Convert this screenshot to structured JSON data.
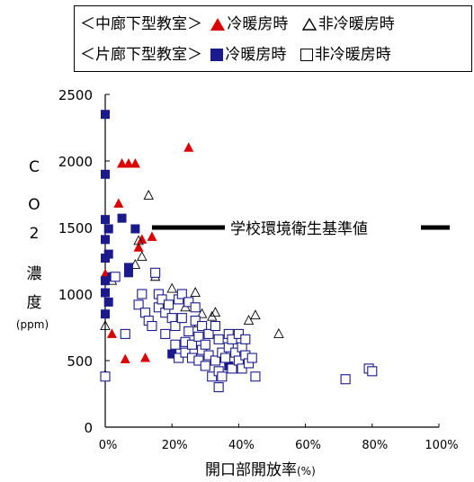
{
  "chart_data": {
    "type": "scatter",
    "xlabel": "開口部開放率",
    "xlabel_unit": "(%)",
    "ylabel_chars": [
      "C",
      "O",
      "2",
      "濃",
      "度"
    ],
    "ylabel_unit": "(ppm)",
    "xlim": [
      0,
      100
    ],
    "ylim": [
      0,
      2500
    ],
    "x_ticks": [
      0,
      20,
      40,
      60,
      80,
      100
    ],
    "x_tick_labels": [
      "0%",
      "20%",
      "40%",
      "60%",
      "80%",
      "100%"
    ],
    "y_ticks": [
      0,
      500,
      1000,
      1500,
      2000,
      2500
    ],
    "y_tick_labels": [
      "0",
      "500",
      "1000",
      "1500",
      "2000",
      "2500"
    ],
    "reference_line": {
      "value": 1500,
      "x_start": 14,
      "x_end": 100,
      "label": "学校環境衛生基準値"
    },
    "legend": {
      "row1_group": "＜中廊下型教室＞",
      "row2_group": "＜片廊下型教室＞",
      "heated": "冷暖房時",
      "unheated": "非冷暖房時"
    },
    "series": [
      {
        "name": "中廊下型教室 冷暖房時",
        "marker": "triangle-filled",
        "color": "#dd0000",
        "points": [
          [
            0,
            1150
          ],
          [
            2,
            700
          ],
          [
            4,
            1680
          ],
          [
            5,
            1980
          ],
          [
            7,
            1980
          ],
          [
            9,
            1980
          ],
          [
            10,
            1350
          ],
          [
            11,
            1410
          ],
          [
            14,
            1430
          ],
          [
            25,
            2100
          ],
          [
            6,
            510
          ],
          [
            12,
            520
          ]
        ]
      },
      {
        "name": "中廊下型教室 非冷暖房時",
        "marker": "triangle-open",
        "color": "#000000",
        "points": [
          [
            0,
            760
          ],
          [
            9,
            1220
          ],
          [
            10,
            1400
          ],
          [
            11,
            1280
          ],
          [
            13,
            1740
          ],
          [
            15,
            1130
          ],
          [
            20,
            1040
          ],
          [
            24,
            900
          ],
          [
            27,
            1010
          ],
          [
            28,
            780
          ],
          [
            29,
            850
          ],
          [
            32,
            830
          ],
          [
            33,
            860
          ],
          [
            43,
            800
          ],
          [
            45,
            840
          ],
          [
            52,
            700
          ],
          [
            0,
            390
          ],
          [
            2,
            1100
          ]
        ]
      },
      {
        "name": "片廊下型教室 冷暖房時",
        "marker": "square-filled",
        "color": "#1a1a8c",
        "points": [
          [
            0,
            2350
          ],
          [
            0,
            1900
          ],
          [
            0,
            1560
          ],
          [
            0,
            1410
          ],
          [
            0,
            1270
          ],
          [
            0,
            1100
          ],
          [
            0,
            1010
          ],
          [
            0,
            850
          ],
          [
            1,
            1490
          ],
          [
            1,
            1300
          ],
          [
            1,
            940
          ],
          [
            2,
            1130
          ],
          [
            5,
            1570
          ],
          [
            7,
            1200
          ],
          [
            7,
            1160
          ],
          [
            9,
            1490
          ],
          [
            20,
            550
          ],
          [
            37,
            460
          ]
        ]
      },
      {
        "name": "片廊下型教室 非冷暖房時",
        "marker": "square-open",
        "color": "#1a1a8c",
        "points": [
          [
            0,
            380
          ],
          [
            3,
            1130
          ],
          [
            6,
            700
          ],
          [
            10,
            920
          ],
          [
            11,
            1000
          ],
          [
            12,
            860
          ],
          [
            13,
            800
          ],
          [
            14,
            760
          ],
          [
            15,
            1160
          ],
          [
            16,
            900
          ],
          [
            16,
            1000
          ],
          [
            17,
            960
          ],
          [
            18,
            860
          ],
          [
            18,
            700
          ],
          [
            19,
            920
          ],
          [
            20,
            820
          ],
          [
            21,
            760
          ],
          [
            21,
            620
          ],
          [
            22,
            960
          ],
          [
            22,
            520
          ],
          [
            23,
            1000
          ],
          [
            23,
            820
          ],
          [
            24,
            640
          ],
          [
            24,
            560
          ],
          [
            25,
            940
          ],
          [
            25,
            720
          ],
          [
            26,
            620
          ],
          [
            26,
            520
          ],
          [
            27,
            900
          ],
          [
            27,
            800
          ],
          [
            28,
            680
          ],
          [
            28,
            500
          ],
          [
            29,
            760
          ],
          [
            29,
            580
          ],
          [
            30,
            620
          ],
          [
            30,
            460
          ],
          [
            31,
            700
          ],
          [
            31,
            540
          ],
          [
            32,
            380
          ],
          [
            33,
            760
          ],
          [
            33,
            500
          ],
          [
            34,
            660
          ],
          [
            34,
            420
          ],
          [
            35,
            560
          ],
          [
            35,
            380
          ],
          [
            36,
            520
          ],
          [
            37,
            700
          ],
          [
            37,
            600
          ],
          [
            38,
            660
          ],
          [
            38,
            440
          ],
          [
            39,
            560
          ],
          [
            40,
            700
          ],
          [
            40,
            500
          ],
          [
            41,
            600
          ],
          [
            41,
            440
          ],
          [
            42,
            660
          ],
          [
            42,
            540
          ],
          [
            43,
            480
          ],
          [
            44,
            520
          ],
          [
            45,
            380
          ],
          [
            34,
            300
          ],
          [
            72,
            360
          ],
          [
            79,
            440
          ],
          [
            80,
            420
          ]
        ]
      }
    ]
  }
}
